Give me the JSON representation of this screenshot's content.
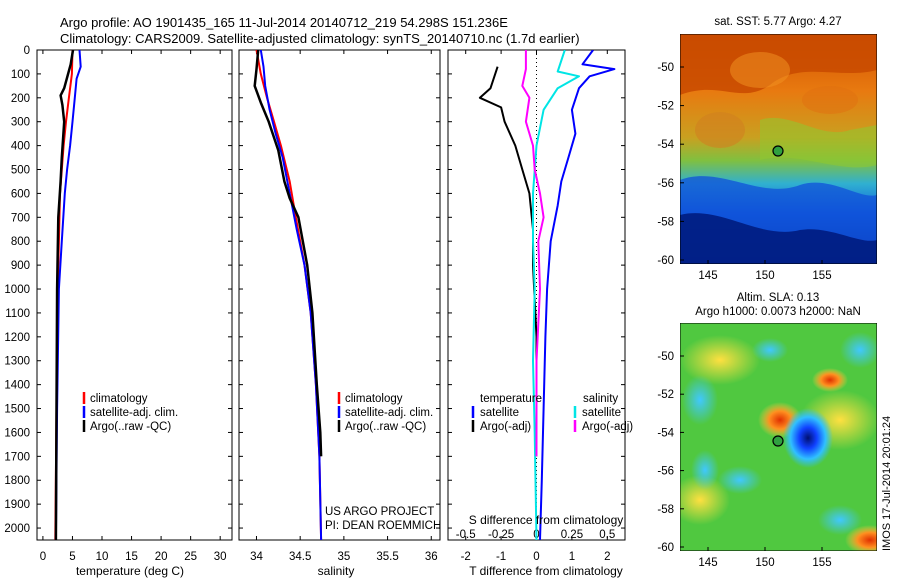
{
  "title_line1": "Argo profile: AO 1901435_165 11-Jul-2014 20140712_219 54.298S 151.236E",
  "title_line2": "Climatology: CARS2009. Satellite-adjusted climatology: synTS_20140710.nc (1.7d earlier)",
  "colors": {
    "climatology": "#ff0000",
    "satellite": "#0000ff",
    "argo": "#000000",
    "sal_satellite": "#00e5e5",
    "sal_argo": "#ff00ff"
  },
  "chart_data": [
    {
      "type": "line",
      "id": "temperature",
      "xlabel": "temperature (deg C)",
      "ylabel": "",
      "xlim": [
        -1,
        32
      ],
      "ylim": [
        2050,
        0
      ],
      "xticks": [
        0,
        5,
        10,
        15,
        20,
        25,
        30
      ],
      "yticks": [
        0,
        100,
        200,
        300,
        400,
        500,
        600,
        700,
        800,
        900,
        1000,
        1100,
        1200,
        1300,
        1400,
        1500,
        1600,
        1700,
        1800,
        1900,
        2000
      ],
      "legend": [
        "climatology",
        "satellite-adj. clim.",
        "Argo(..raw -QC)"
      ],
      "series": [
        {
          "name": "climatology",
          "color": "#ff0000",
          "points": [
            [
              5.0,
              0
            ],
            [
              4.9,
              100
            ],
            [
              4.4,
              200
            ],
            [
              3.9,
              300
            ],
            [
              3.5,
              400
            ],
            [
              3.2,
              500
            ],
            [
              2.9,
              600
            ],
            [
              2.7,
              800
            ],
            [
              2.5,
              1000
            ],
            [
              2.3,
              1500
            ],
            [
              2.1,
              2050
            ]
          ]
        },
        {
          "name": "satellite-adj. clim.",
          "color": "#0000ff",
          "points": [
            [
              6.2,
              0
            ],
            [
              6.4,
              70
            ],
            [
              5.7,
              120
            ],
            [
              5.4,
              200
            ],
            [
              5.0,
              300
            ],
            [
              4.6,
              400
            ],
            [
              4.1,
              500
            ],
            [
              3.7,
              600
            ],
            [
              3.2,
              800
            ],
            [
              2.7,
              1000
            ],
            [
              2.4,
              1500
            ],
            [
              2.2,
              2050
            ]
          ]
        },
        {
          "name": "Argo(..raw -QC)",
          "color": "#000000",
          "points": [
            [
              5.1,
              0
            ],
            [
              4.7,
              60
            ],
            [
              3.6,
              160
            ],
            [
              3.0,
              190
            ],
            [
              3.3,
              230
            ],
            [
              3.6,
              300
            ],
            [
              3.2,
              450
            ],
            [
              3.0,
              550
            ],
            [
              2.6,
              700
            ],
            [
              2.5,
              850
            ],
            [
              2.4,
              1000
            ],
            [
              2.3,
              1500
            ],
            [
              2.2,
              2050
            ]
          ]
        }
      ]
    },
    {
      "type": "line",
      "id": "salinity",
      "xlabel": "salinity",
      "xlim": [
        33.8,
        36.1
      ],
      "xticks": [
        34,
        34.5,
        35,
        35.5,
        36
      ],
      "ylim": [
        2050,
        0
      ],
      "legend": [
        "climatology",
        "satellite-adj. clim.",
        "Argo(..raw -QC)"
      ],
      "annotation": [
        "US ARGO PROJECT",
        "PI: DEAN ROEMMICH"
      ],
      "series": [
        {
          "name": "climatology",
          "color": "#ff0000",
          "points": [
            [
              34.0,
              0
            ],
            [
              34.05,
              100
            ],
            [
              34.12,
              200
            ],
            [
              34.2,
              300
            ],
            [
              34.28,
              400
            ],
            [
              34.38,
              550
            ],
            [
              34.45,
              700
            ],
            [
              34.55,
              900
            ],
            [
              34.62,
              1100
            ],
            [
              34.68,
              1400
            ],
            [
              34.72,
              1700
            ],
            [
              34.74,
              2050
            ]
          ]
        },
        {
          "name": "satellite-adj. clim.",
          "color": "#0000ff",
          "points": [
            [
              34.05,
              0
            ],
            [
              34.08,
              70
            ],
            [
              34.1,
              150
            ],
            [
              34.15,
              250
            ],
            [
              34.22,
              350
            ],
            [
              34.3,
              450
            ],
            [
              34.38,
              600
            ],
            [
              34.46,
              750
            ],
            [
              34.55,
              900
            ],
            [
              34.62,
              1100
            ],
            [
              34.68,
              1400
            ],
            [
              34.72,
              1700
            ],
            [
              34.74,
              2050
            ]
          ]
        },
        {
          "name": "Argo(..raw -QC)",
          "color": "#000000",
          "points": [
            [
              34.02,
              0
            ],
            [
              34.0,
              80
            ],
            [
              33.98,
              150
            ],
            [
              34.05,
              220
            ],
            [
              34.14,
              300
            ],
            [
              34.25,
              420
            ],
            [
              34.32,
              550
            ],
            [
              34.38,
              620
            ],
            [
              34.48,
              700
            ],
            [
              34.58,
              900
            ],
            [
              34.64,
              1100
            ],
            [
              34.69,
              1400
            ],
            [
              34.73,
              1600
            ],
            [
              34.74,
              1700
            ]
          ]
        }
      ]
    },
    {
      "type": "line",
      "id": "difference",
      "xlabel": "T difference from climatology",
      "xlabel_top": "S difference from climatology",
      "xlim": [
        -2.5,
        2.5
      ],
      "xticks": [
        -2,
        -1,
        0,
        1,
        2
      ],
      "sticks_labels": [
        "-0.5",
        "-0.25",
        "0",
        "0.25",
        "0.5"
      ],
      "sticks_values": [
        -2,
        -1,
        0,
        1,
        2
      ],
      "ylim": [
        2050,
        0
      ],
      "legend": {
        "temperature": "temperature",
        "salinity": "salinity",
        "t_sat": "satellite",
        "t_argo": "Argo(-adj)",
        "s_sat": "satellite",
        "s_argo": "Argo(-adj)"
      },
      "series": [
        {
          "name": "T satellite",
          "color": "#0000ff",
          "points": [
            [
              1.6,
              0
            ],
            [
              1.3,
              60
            ],
            [
              2.2,
              80
            ],
            [
              1.5,
              110
            ],
            [
              1.2,
              160
            ],
            [
              1.0,
              250
            ],
            [
              1.1,
              350
            ],
            [
              0.9,
              450
            ],
            [
              0.7,
              550
            ],
            [
              0.6,
              650
            ],
            [
              0.4,
              800
            ],
            [
              0.3,
              1000
            ],
            [
              0.25,
              1200
            ],
            [
              0.2,
              1500
            ],
            [
              0.15,
              1800
            ],
            [
              0.1,
              2050
            ]
          ]
        },
        {
          "name": "T Argo(-adj)",
          "color": "#000000",
          "points": [
            [
              -1.1,
              70
            ],
            [
              -1.3,
              160
            ],
            [
              -1.6,
              200
            ],
            [
              -1.0,
              240
            ],
            [
              -0.9,
              300
            ],
            [
              -0.6,
              400
            ],
            [
              -0.4,
              500
            ],
            [
              -0.2,
              600
            ],
            [
              -0.1,
              750
            ],
            [
              -0.1,
              900
            ],
            [
              0.0,
              1200
            ],
            [
              0.0,
              1600
            ],
            [
              0.0,
              1700
            ]
          ]
        },
        {
          "name": "S satellite",
          "color": "#00e5e5",
          "points": [
            [
              0.8,
              0
            ],
            [
              0.6,
              90
            ],
            [
              1.2,
              110
            ],
            [
              0.6,
              160
            ],
            [
              0.2,
              250
            ],
            [
              0.0,
              400
            ],
            [
              -0.1,
              600
            ],
            [
              -0.1,
              800
            ],
            [
              -0.05,
              1000
            ],
            [
              -0.1,
              1300
            ],
            [
              -0.05,
              1600
            ],
            [
              0.0,
              2050
            ]
          ]
        },
        {
          "name": "S Argo(-adj)",
          "color": "#ff00ff",
          "points": [
            [
              -0.3,
              0
            ],
            [
              -0.3,
              80
            ],
            [
              -0.4,
              150
            ],
            [
              -0.2,
              200
            ],
            [
              -0.3,
              300
            ],
            [
              -0.1,
              400
            ],
            [
              -0.05,
              500
            ],
            [
              0.1,
              600
            ],
            [
              0.2,
              700
            ],
            [
              0.05,
              800
            ],
            [
              0.1,
              1000
            ],
            [
              0.0,
              1300
            ],
            [
              0.0,
              1700
            ]
          ]
        }
      ]
    }
  ],
  "sst_map": {
    "title": "sat. SST: 5.77 Argo: 4.27",
    "xticks": [
      "145",
      "150",
      "155"
    ],
    "yticks": [
      "-50",
      "-52",
      "-54",
      "-56",
      "-58",
      "-60"
    ]
  },
  "sla_map": {
    "title_line1": "Altim. SLA: 0.13",
    "title_line2": "Argo h1000: 0.0073 h2000: NaN",
    "xticks": [
      "145",
      "150",
      "155"
    ],
    "yticks": [
      "-50",
      "-52",
      "-54",
      "-56",
      "-58",
      "-60"
    ],
    "stamp": "IMOS 17-Jul-2014 20:01:24"
  }
}
